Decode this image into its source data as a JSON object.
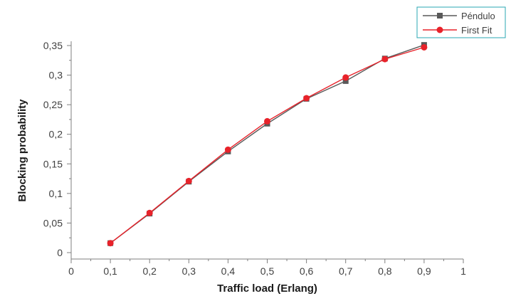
{
  "chart_data": {
    "type": "line",
    "xlabel": "Traffic load (Erlang)",
    "ylabel": "Blocking probability",
    "xlim": [
      0,
      1
    ],
    "ylim": [
      0,
      0.35
    ],
    "x_ticks": [
      "0",
      "0,1",
      "0,2",
      "0,3",
      "0,4",
      "0,5",
      "0,6",
      "0,7",
      "0,8",
      "0,9",
      "1"
    ],
    "y_ticks": [
      "0",
      "0,05",
      "0,1",
      "0,15",
      "0,2",
      "0,25",
      "0,3",
      "0,35"
    ],
    "x": [
      0.1,
      0.2,
      0.3,
      0.4,
      0.5,
      0.6,
      0.7,
      0.8,
      0.9
    ],
    "legend_position": "top-right",
    "series": [
      {
        "name": "Péndulo",
        "color": "#595959",
        "marker": "square",
        "values": [
          0.016,
          0.066,
          0.12,
          0.171,
          0.218,
          0.26,
          0.29,
          0.328,
          0.351
        ]
      },
      {
        "name": "First Fit",
        "color": "#e8222a",
        "marker": "circle",
        "values": [
          0.016,
          0.067,
          0.121,
          0.174,
          0.222,
          0.261,
          0.296,
          0.327,
          0.347
        ]
      }
    ]
  }
}
